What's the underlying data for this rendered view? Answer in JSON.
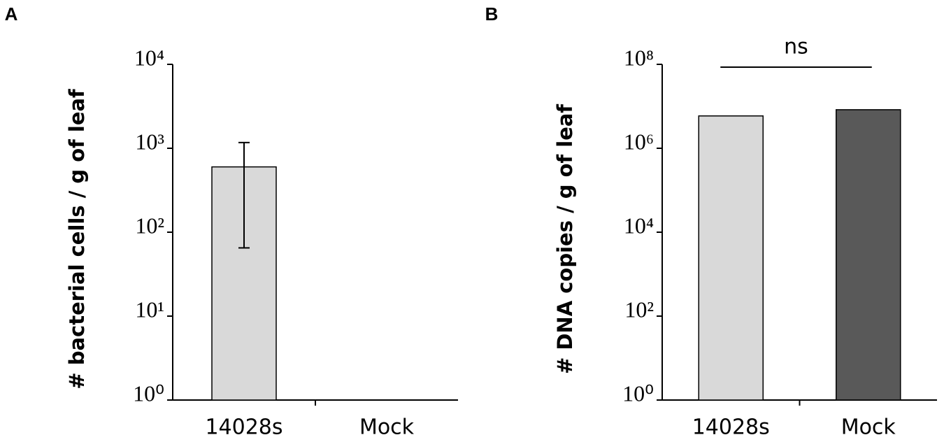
{
  "chart_data": [
    {
      "type": "bar",
      "panel_label": "A",
      "y_label": "# bacterial cells / g of leaf",
      "categories": [
        "14028s",
        "Mock"
      ],
      "series": [
        {
          "colors": [
            "#d9d9d9",
            "#d9d9d9"
          ],
          "values": [
            600,
            null
          ],
          "error_minus": [
            535,
            null
          ],
          "error_plus": [
            570,
            null
          ]
        }
      ],
      "log_scale": true,
      "ylim": [
        1,
        10000
      ],
      "yticks": [
        {
          "value": 1,
          "label": "10⁰"
        },
        {
          "value": 10,
          "label": "10¹"
        },
        {
          "value": 100,
          "label": "10²"
        },
        {
          "value": 1000,
          "label": "10³"
        },
        {
          "value": 10000,
          "label": "10⁴"
        }
      ]
    },
    {
      "type": "bar",
      "panel_label": "B",
      "y_label": "# DNA copies / g of leaf",
      "categories": [
        "14028s",
        "Mock"
      ],
      "series": [
        {
          "colors": [
            "#d9d9d9",
            "#595959"
          ],
          "values": [
            5900000,
            8300000
          ]
        }
      ],
      "log_scale": true,
      "ylim": [
        1,
        100000000
      ],
      "yticks": [
        {
          "value": 1,
          "label": "10⁰"
        },
        {
          "value": 100,
          "label": "10²"
        },
        {
          "value": 10000,
          "label": "10⁴"
        },
        {
          "value": 1000000,
          "label": "10⁶"
        },
        {
          "value": 100000000,
          "label": "10⁸"
        }
      ],
      "annotation": "ns"
    }
  ]
}
